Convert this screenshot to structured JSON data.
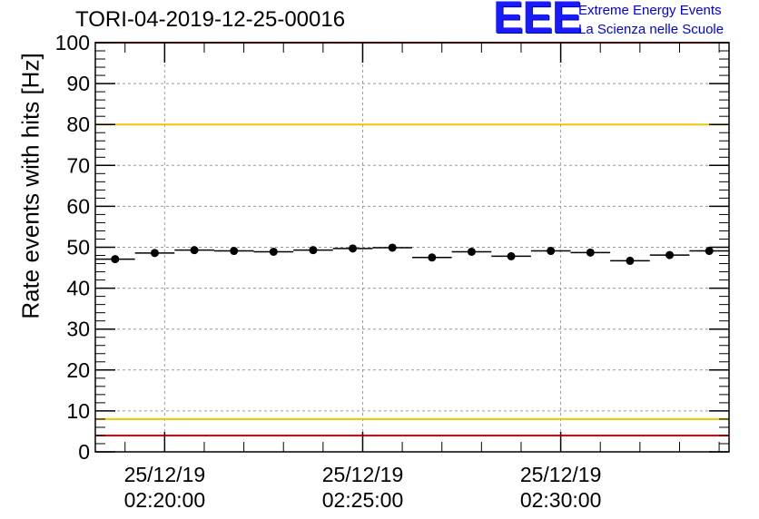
{
  "chart_data": {
    "type": "scatter",
    "title": "TORI-04-2019-12-25-00016",
    "ylabel": "Rate events with hits [Hz]",
    "xlabel": "",
    "ylim": [
      0,
      100
    ],
    "yticks": [
      0,
      10,
      20,
      30,
      40,
      50,
      60,
      70,
      80,
      90,
      100
    ],
    "xlim_minutes": [
      -1.75,
      14.25
    ],
    "xticks": [
      {
        "minute": 0,
        "date": "25/12/19",
        "time": "02:20:00"
      },
      {
        "minute": 5,
        "date": "25/12/19",
        "time": "02:25:00"
      },
      {
        "minute": 10,
        "date": "25/12/19",
        "time": "02:30:00"
      }
    ],
    "grid": true,
    "bin_width_minutes": 1,
    "series": [
      {
        "name": "rate",
        "x": [
          -1.25,
          -0.25,
          0.75,
          1.75,
          2.75,
          3.75,
          4.75,
          5.75,
          6.75,
          7.75,
          8.75,
          9.75,
          10.75,
          11.75,
          12.75,
          13.75
        ],
        "values": [
          47.1,
          48.6,
          49.3,
          49.1,
          48.9,
          49.3,
          49.7,
          49.9,
          47.5,
          48.9,
          47.8,
          49.1,
          48.7,
          46.7,
          48.1,
          49.1
        ]
      }
    ],
    "reference_lines": [
      {
        "name": "upper-limit",
        "value": 80,
        "color": "#e8c800"
      },
      {
        "name": "lower-limit",
        "value": 8,
        "color": "#e8c800"
      },
      {
        "name": "minimum-line",
        "value": 4,
        "color": "#e8000b"
      },
      {
        "name": "maximum-line",
        "value": 100,
        "color": "#e8000b"
      }
    ]
  },
  "logo": {
    "mark": "EEE",
    "line1": "Extreme Energy Events",
    "line2": "La Scienza nelle Scuole",
    "color": "#0000ee"
  }
}
